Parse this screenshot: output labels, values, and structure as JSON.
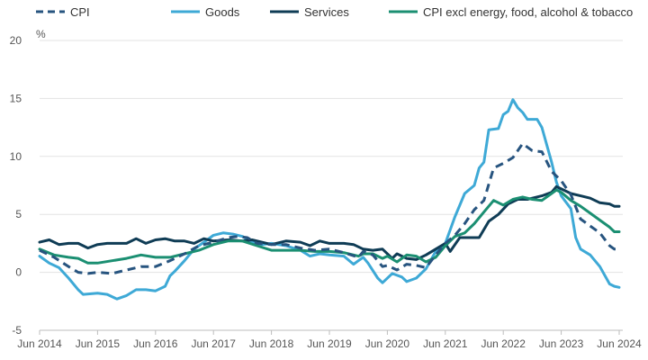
{
  "chart_data": {
    "type": "line",
    "unit_label": "%",
    "ylim": [
      -5,
      20
    ],
    "yticks": [
      -5,
      0,
      5,
      10,
      15,
      20
    ],
    "xticks": [
      "Jun 2014",
      "Jun 2015",
      "Jun 2016",
      "Jun 2017",
      "Jun 2018",
      "Jun 2019",
      "Jun 2020",
      "Jun 2021",
      "Jun 2022",
      "Jun 2023",
      "Jun 2024"
    ],
    "grid": "horizontal",
    "legend_position": "top",
    "x_start": "2014-06",
    "series": [
      {
        "name": "CPI",
        "color": "#27547f",
        "style": "dashed",
        "keypoints": [
          [
            "2014-06",
            1.9
          ],
          [
            "2014-09",
            1.3
          ],
          [
            "2014-12",
            0.5
          ],
          [
            "2015-02",
            0.0
          ],
          [
            "2015-04",
            -0.1
          ],
          [
            "2015-06",
            0.0
          ],
          [
            "2015-09",
            -0.1
          ],
          [
            "2015-12",
            0.2
          ],
          [
            "2016-03",
            0.5
          ],
          [
            "2016-06",
            0.5
          ],
          [
            "2016-09",
            1.0
          ],
          [
            "2016-12",
            1.6
          ],
          [
            "2017-03",
            2.3
          ],
          [
            "2017-06",
            2.6
          ],
          [
            "2017-09",
            3.0
          ],
          [
            "2017-11",
            3.1
          ],
          [
            "2018-01",
            3.0
          ],
          [
            "2018-03",
            2.5
          ],
          [
            "2018-06",
            2.4
          ],
          [
            "2018-09",
            2.4
          ],
          [
            "2018-12",
            2.1
          ],
          [
            "2019-03",
            1.9
          ],
          [
            "2019-06",
            2.0
          ],
          [
            "2019-09",
            1.7
          ],
          [
            "2019-12",
            1.3
          ],
          [
            "2020-01",
            1.8
          ],
          [
            "2020-03",
            1.5
          ],
          [
            "2020-05",
            0.5
          ],
          [
            "2020-06",
            0.6
          ],
          [
            "2020-08",
            0.2
          ],
          [
            "2020-10",
            0.7
          ],
          [
            "2020-12",
            0.6
          ],
          [
            "2021-02",
            0.4
          ],
          [
            "2021-04",
            1.5
          ],
          [
            "2021-06",
            2.5
          ],
          [
            "2021-08",
            3.2
          ],
          [
            "2021-10",
            4.2
          ],
          [
            "2021-12",
            5.4
          ],
          [
            "2022-02",
            6.2
          ],
          [
            "2022-04",
            9.0
          ],
          [
            "2022-06",
            9.4
          ],
          [
            "2022-08",
            9.9
          ],
          [
            "2022-10",
            11.1
          ],
          [
            "2022-12",
            10.5
          ],
          [
            "2023-02",
            10.4
          ],
          [
            "2023-04",
            8.7
          ],
          [
            "2023-06",
            7.9
          ],
          [
            "2023-08",
            6.7
          ],
          [
            "2023-10",
            4.6
          ],
          [
            "2023-12",
            4.0
          ],
          [
            "2024-02",
            3.4
          ],
          [
            "2024-04",
            2.3
          ],
          [
            "2024-05",
            2.0
          ],
          [
            "2024-06",
            2.0
          ]
        ]
      },
      {
        "name": "Goods",
        "color": "#3ea9d6",
        "style": "solid",
        "keypoints": [
          [
            "2014-06",
            1.4
          ],
          [
            "2014-08",
            0.8
          ],
          [
            "2014-10",
            0.4
          ],
          [
            "2014-12",
            -0.5
          ],
          [
            "2015-02",
            -1.5
          ],
          [
            "2015-03",
            -1.9
          ],
          [
            "2015-06",
            -1.8
          ],
          [
            "2015-08",
            -1.9
          ],
          [
            "2015-10",
            -2.3
          ],
          [
            "2015-12",
            -2.0
          ],
          [
            "2016-02",
            -1.5
          ],
          [
            "2016-04",
            -1.5
          ],
          [
            "2016-06",
            -1.6
          ],
          [
            "2016-08",
            -1.2
          ],
          [
            "2016-09",
            -0.3
          ],
          [
            "2016-10",
            0.1
          ],
          [
            "2016-12",
            1.0
          ],
          [
            "2017-02",
            2.0
          ],
          [
            "2017-04",
            2.6
          ],
          [
            "2017-06",
            3.2
          ],
          [
            "2017-08",
            3.4
          ],
          [
            "2017-10",
            3.3
          ],
          [
            "2017-12",
            3.1
          ],
          [
            "2018-02",
            2.6
          ],
          [
            "2018-04",
            2.4
          ],
          [
            "2018-06",
            2.5
          ],
          [
            "2018-09",
            2.3
          ],
          [
            "2018-12",
            1.9
          ],
          [
            "2019-02",
            1.4
          ],
          [
            "2019-04",
            1.6
          ],
          [
            "2019-06",
            1.5
          ],
          [
            "2019-09",
            1.4
          ],
          [
            "2019-11",
            0.7
          ],
          [
            "2019-12",
            1.0
          ],
          [
            "2020-01",
            1.3
          ],
          [
            "2020-02",
            0.8
          ],
          [
            "2020-04",
            -0.5
          ],
          [
            "2020-05",
            -0.9
          ],
          [
            "2020-07",
            -0.1
          ],
          [
            "2020-09",
            -0.4
          ],
          [
            "2020-10",
            -0.8
          ],
          [
            "2020-12",
            -0.5
          ],
          [
            "2021-02",
            0.3
          ],
          [
            "2021-04",
            1.8
          ],
          [
            "2021-06",
            2.5
          ],
          [
            "2021-08",
            4.8
          ],
          [
            "2021-10",
            6.8
          ],
          [
            "2021-12",
            7.5
          ],
          [
            "2022-01",
            9.0
          ],
          [
            "2022-02",
            9.5
          ],
          [
            "2022-03",
            12.3
          ],
          [
            "2022-05",
            12.4
          ],
          [
            "2022-06",
            13.6
          ],
          [
            "2022-07",
            13.9
          ],
          [
            "2022-08",
            14.9
          ],
          [
            "2022-09",
            14.2
          ],
          [
            "2022-10",
            13.8
          ],
          [
            "2022-11",
            13.2
          ],
          [
            "2023-01",
            13.2
          ],
          [
            "2023-02",
            12.5
          ],
          [
            "2023-04",
            9.5
          ],
          [
            "2023-05",
            7.8
          ],
          [
            "2023-06",
            6.6
          ],
          [
            "2023-08",
            5.5
          ],
          [
            "2023-09",
            3.0
          ],
          [
            "2023-10",
            2.0
          ],
          [
            "2023-12",
            1.5
          ],
          [
            "2024-02",
            0.5
          ],
          [
            "2024-04",
            -1.0
          ],
          [
            "2024-05",
            -1.2
          ],
          [
            "2024-06",
            -1.3
          ]
        ]
      },
      {
        "name": "Services",
        "color": "#0f3c55",
        "style": "solid",
        "keypoints": [
          [
            "2014-06",
            2.6
          ],
          [
            "2014-08",
            2.8
          ],
          [
            "2014-10",
            2.4
          ],
          [
            "2014-12",
            2.5
          ],
          [
            "2015-02",
            2.5
          ],
          [
            "2015-04",
            2.1
          ],
          [
            "2015-06",
            2.4
          ],
          [
            "2015-08",
            2.5
          ],
          [
            "2015-10",
            2.5
          ],
          [
            "2015-12",
            2.5
          ],
          [
            "2016-02",
            2.9
          ],
          [
            "2016-04",
            2.5
          ],
          [
            "2016-06",
            2.8
          ],
          [
            "2016-08",
            2.9
          ],
          [
            "2016-10",
            2.7
          ],
          [
            "2016-12",
            2.7
          ],
          [
            "2017-02",
            2.5
          ],
          [
            "2017-04",
            2.9
          ],
          [
            "2017-06",
            2.7
          ],
          [
            "2017-09",
            2.8
          ],
          [
            "2017-12",
            2.7
          ],
          [
            "2018-02",
            2.8
          ],
          [
            "2018-04",
            2.6
          ],
          [
            "2018-06",
            2.4
          ],
          [
            "2018-09",
            2.7
          ],
          [
            "2018-12",
            2.6
          ],
          [
            "2019-02",
            2.3
          ],
          [
            "2019-04",
            2.7
          ],
          [
            "2019-06",
            2.5
          ],
          [
            "2019-09",
            2.5
          ],
          [
            "2019-11",
            2.4
          ],
          [
            "2020-01",
            2.0
          ],
          [
            "2020-03",
            1.9
          ],
          [
            "2020-05",
            2.0
          ],
          [
            "2020-07",
            1.2
          ],
          [
            "2020-08",
            1.6
          ],
          [
            "2020-10",
            1.2
          ],
          [
            "2020-12",
            1.1
          ],
          [
            "2021-02",
            1.5
          ],
          [
            "2021-04",
            2.0
          ],
          [
            "2021-06",
            2.5
          ],
          [
            "2021-07",
            1.8
          ],
          [
            "2021-09",
            3.0
          ],
          [
            "2021-11",
            3.0
          ],
          [
            "2022-01",
            3.0
          ],
          [
            "2022-03",
            4.4
          ],
          [
            "2022-05",
            5.0
          ],
          [
            "2022-07",
            5.9
          ],
          [
            "2022-09",
            6.3
          ],
          [
            "2022-11",
            6.3
          ],
          [
            "2022-12",
            6.4
          ],
          [
            "2023-02",
            6.6
          ],
          [
            "2023-04",
            6.9
          ],
          [
            "2023-05",
            7.4
          ],
          [
            "2023-06",
            7.2
          ],
          [
            "2023-08",
            6.8
          ],
          [
            "2023-10",
            6.6
          ],
          [
            "2023-12",
            6.4
          ],
          [
            "2024-02",
            6.0
          ],
          [
            "2024-04",
            5.9
          ],
          [
            "2024-05",
            5.7
          ],
          [
            "2024-06",
            5.7
          ]
        ]
      },
      {
        "name": "CPI excl energy, food, alcohol & tobacco",
        "color": "#1b8f72",
        "style": "solid",
        "keypoints": [
          [
            "2014-06",
            2.0
          ],
          [
            "2014-09",
            1.5
          ],
          [
            "2014-12",
            1.3
          ],
          [
            "2015-02",
            1.2
          ],
          [
            "2015-04",
            0.8
          ],
          [
            "2015-06",
            0.8
          ],
          [
            "2015-09",
            1.0
          ],
          [
            "2015-12",
            1.2
          ],
          [
            "2016-03",
            1.5
          ],
          [
            "2016-06",
            1.3
          ],
          [
            "2016-09",
            1.3
          ],
          [
            "2016-12",
            1.6
          ],
          [
            "2017-03",
            1.9
          ],
          [
            "2017-06",
            2.4
          ],
          [
            "2017-09",
            2.7
          ],
          [
            "2017-12",
            2.7
          ],
          [
            "2018-03",
            2.3
          ],
          [
            "2018-06",
            1.9
          ],
          [
            "2018-09",
            1.9
          ],
          [
            "2018-12",
            1.9
          ],
          [
            "2019-03",
            1.8
          ],
          [
            "2019-06",
            1.8
          ],
          [
            "2019-09",
            1.7
          ],
          [
            "2019-12",
            1.4
          ],
          [
            "2020-01",
            1.6
          ],
          [
            "2020-03",
            1.6
          ],
          [
            "2020-05",
            1.2
          ],
          [
            "2020-06",
            1.4
          ],
          [
            "2020-08",
            0.9
          ],
          [
            "2020-10",
            1.5
          ],
          [
            "2020-12",
            1.4
          ],
          [
            "2021-02",
            0.9
          ],
          [
            "2021-04",
            1.3
          ],
          [
            "2021-06",
            2.3
          ],
          [
            "2021-08",
            3.1
          ],
          [
            "2021-10",
            3.4
          ],
          [
            "2021-12",
            4.2
          ],
          [
            "2022-02",
            5.2
          ],
          [
            "2022-04",
            6.2
          ],
          [
            "2022-06",
            5.8
          ],
          [
            "2022-08",
            6.3
          ],
          [
            "2022-10",
            6.5
          ],
          [
            "2022-12",
            6.3
          ],
          [
            "2023-02",
            6.2
          ],
          [
            "2023-04",
            6.8
          ],
          [
            "2023-05",
            7.1
          ],
          [
            "2023-06",
            6.9
          ],
          [
            "2023-08",
            6.2
          ],
          [
            "2023-10",
            5.7
          ],
          [
            "2023-12",
            5.1
          ],
          [
            "2024-02",
            4.5
          ],
          [
            "2024-04",
            3.9
          ],
          [
            "2024-05",
            3.5
          ],
          [
            "2024-06",
            3.5
          ]
        ]
      }
    ]
  }
}
